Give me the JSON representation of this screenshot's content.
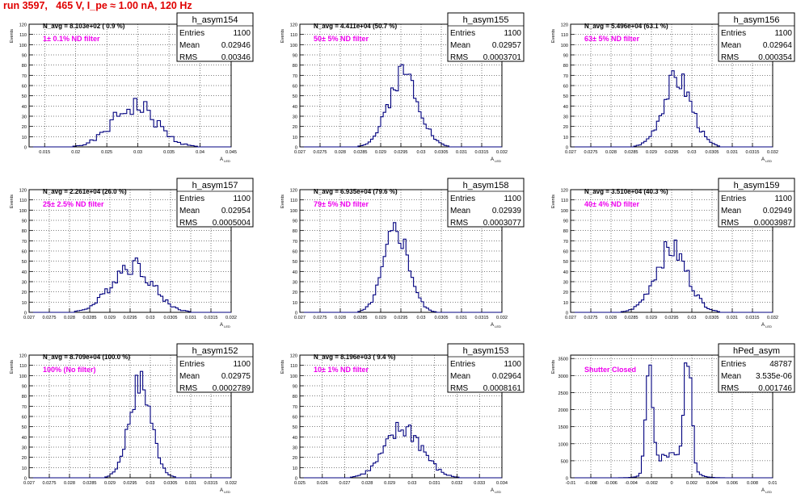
{
  "header": {
    "run_title": "run 3597,   465 V, I_pe ≈ 1.00 nA, 120 Hz"
  },
  "colors": {
    "hist": "#00007f",
    "title": "#e00000",
    "annot": "#ee00ee",
    "grid": "#000000"
  },
  "chart_data": [
    {
      "type": "histogram",
      "name": "h_asym154",
      "stats": {
        "entries": "1100",
        "mean": "0.02946",
        "rms": "0.00346"
      },
      "navg": "N_avg = 8.103e+02 ( 0.9 %)",
      "filter": "1± 0.1% ND filter",
      "ylabel": "Events",
      "xlabel": "A_LED",
      "xlim": [
        0.0125,
        0.045
      ],
      "ylim": [
        0,
        120
      ],
      "xticks": [
        "0.015",
        "0.02",
        "0.025",
        "0.03",
        "0.035",
        "0.04",
        "0.045"
      ],
      "xtick_vals": [
        0.015,
        0.02,
        0.025,
        0.03,
        0.035,
        0.04,
        0.045
      ],
      "yticks": [
        0,
        10,
        20,
        30,
        40,
        50,
        60,
        70,
        80,
        90,
        100,
        110,
        120
      ],
      "hist": {
        "mean": 0.02946,
        "rms": 0.00346,
        "peak": 40,
        "bins": 60,
        "jag": 0.28,
        "seed": 1
      }
    },
    {
      "type": "histogram",
      "name": "h_asym155",
      "stats": {
        "entries": "1100",
        "mean": "0.02957",
        "rms": "0.0003701"
      },
      "navg": "N_avg = 4.411e+04 (50.7 %)",
      "filter": "50± 5% ND filter",
      "ylabel": "Events",
      "xlabel": "A_LED",
      "xlim": [
        0.027,
        0.032
      ],
      "ylim": [
        0,
        120
      ],
      "xticks": [
        "0.027",
        "0.0275",
        "0.028",
        "0.0285",
        "0.029",
        "0.0295",
        "0.03",
        "0.0305",
        "0.031",
        "0.0315",
        "0.032"
      ],
      "xtick_vals": [
        0.027,
        0.0275,
        0.028,
        0.0285,
        0.029,
        0.0295,
        0.03,
        0.0305,
        0.031,
        0.0315,
        0.032
      ],
      "yticks": [
        0,
        10,
        20,
        30,
        40,
        50,
        60,
        70,
        80,
        90,
        100,
        110,
        120
      ],
      "hist": {
        "mean": 0.02957,
        "rms": 0.00037,
        "peak": 73,
        "bins": 80,
        "jag": 0.18,
        "seed": 2
      }
    },
    {
      "type": "histogram",
      "name": "h_asym156",
      "stats": {
        "entries": "1100",
        "mean": "0.02964",
        "rms": "0.000354"
      },
      "navg": "N_avg = 5.496e+04 (63.1 %)",
      "filter": "63± 5% ND filter",
      "ylabel": "Events",
      "xlabel": "A_LED",
      "xlim": [
        0.027,
        0.032
      ],
      "ylim": [
        0,
        120
      ],
      "xticks": [
        "0.027",
        "0.0275",
        "0.028",
        "0.0285",
        "0.029",
        "0.0295",
        "0.03",
        "0.0305",
        "0.031",
        "0.0315",
        "0.032"
      ],
      "xtick_vals": [
        0.027,
        0.0275,
        0.028,
        0.0285,
        0.029,
        0.0295,
        0.03,
        0.0305,
        0.031,
        0.0315,
        0.032
      ],
      "yticks": [
        0,
        10,
        20,
        30,
        40,
        50,
        60,
        70,
        80,
        90,
        100,
        110,
        120
      ],
      "hist": {
        "mean": 0.02964,
        "rms": 0.000354,
        "peak": 67,
        "bins": 80,
        "jag": 0.2,
        "seed": 3
      }
    },
    {
      "type": "histogram",
      "name": "h_asym157",
      "stats": {
        "entries": "1100",
        "mean": "0.02954",
        "rms": "0.0005004"
      },
      "navg": "N_avg = 2.261e+04 (26.0 %)",
      "filter": "25± 2.5% ND filter",
      "ylabel": "Events",
      "xlabel": "A_LED",
      "xlim": [
        0.027,
        0.032
      ],
      "ylim": [
        0,
        120
      ],
      "xticks": [
        "0.027",
        "0.0275",
        "0.028",
        "0.0285",
        "0.029",
        "0.0295",
        "0.03",
        "0.0305",
        "0.031",
        "0.0315",
        "0.032"
      ],
      "xtick_vals": [
        0.027,
        0.0275,
        0.028,
        0.0285,
        0.029,
        0.0295,
        0.03,
        0.0305,
        0.031,
        0.0315,
        0.032
      ],
      "yticks": [
        0,
        10,
        20,
        30,
        40,
        50,
        60,
        70,
        80,
        90,
        100,
        110,
        120
      ],
      "hist": {
        "mean": 0.02954,
        "rms": 0.0005,
        "peak": 47,
        "bins": 80,
        "jag": 0.22,
        "seed": 4
      }
    },
    {
      "type": "histogram",
      "name": "h_asym158",
      "stats": {
        "entries": "1100",
        "mean": "0.02939",
        "rms": "0.0003077"
      },
      "navg": "N_avg = 6.935e+04 (79.6 %)",
      "filter": "79± 5% ND filter",
      "ylabel": "Events",
      "xlabel": "A_LED",
      "xlim": [
        0.027,
        0.032
      ],
      "ylim": [
        0,
        120
      ],
      "xticks": [
        "0.027",
        "0.0275",
        "0.028",
        "0.0285",
        "0.029",
        "0.0295",
        "0.03",
        "0.0305",
        "0.031",
        "0.0315",
        "0.032"
      ],
      "xtick_vals": [
        0.027,
        0.0275,
        0.028,
        0.0285,
        0.029,
        0.0295,
        0.03,
        0.0305,
        0.031,
        0.0315,
        0.032
      ],
      "yticks": [
        0,
        10,
        20,
        30,
        40,
        50,
        60,
        70,
        80,
        90,
        100,
        110,
        120
      ],
      "hist": {
        "mean": 0.02939,
        "rms": 0.000308,
        "peak": 80,
        "bins": 80,
        "jag": 0.18,
        "seed": 5
      }
    },
    {
      "type": "histogram",
      "name": "h_asym159",
      "stats": {
        "entries": "1100",
        "mean": "0.02949",
        "rms": "0.0003987"
      },
      "navg": "N_avg = 3.510e+04 (40.3 %)",
      "filter": "40± 4% ND filter",
      "ylabel": "Events",
      "xlabel": "A_LED",
      "xlim": [
        0.027,
        0.032
      ],
      "ylim": [
        0,
        120
      ],
      "xticks": [
        "0.027",
        "0.0275",
        "0.028",
        "0.0285",
        "0.029",
        "0.0295",
        "0.03",
        "0.0305",
        "0.031",
        "0.0315",
        "0.032"
      ],
      "xtick_vals": [
        0.027,
        0.0275,
        0.028,
        0.0285,
        0.029,
        0.0295,
        0.03,
        0.0305,
        0.031,
        0.0315,
        0.032
      ],
      "yticks": [
        0,
        10,
        20,
        30,
        40,
        50,
        60,
        70,
        80,
        90,
        100,
        110,
        120
      ],
      "hist": {
        "mean": 0.02949,
        "rms": 0.0004,
        "peak": 62,
        "bins": 80,
        "jag": 0.2,
        "seed": 6
      }
    },
    {
      "type": "histogram",
      "name": "h_asym152",
      "stats": {
        "entries": "1100",
        "mean": "0.02975",
        "rms": "0.0002789"
      },
      "navg": "N_avg = 8.709e+04 (100.0 %)",
      "filter": "100% (No filter)",
      "ylabel": "Events",
      "xlabel": "A_LED",
      "xlim": [
        0.027,
        0.032
      ],
      "ylim": [
        0,
        120
      ],
      "xticks": [
        "0.027",
        "0.0275",
        "0.028",
        "0.0285",
        "0.029",
        "0.0295",
        "0.03",
        "0.0305",
        "0.031",
        "0.0315",
        "0.032"
      ],
      "xtick_vals": [
        0.027,
        0.0275,
        0.028,
        0.0285,
        0.029,
        0.0295,
        0.03,
        0.0305,
        0.031,
        0.0315,
        0.032
      ],
      "yticks": [
        0,
        10,
        20,
        30,
        40,
        50,
        60,
        70,
        80,
        90,
        100,
        110,
        120
      ],
      "hist": {
        "mean": 0.02975,
        "rms": 0.000279,
        "peak": 92,
        "bins": 80,
        "jag": 0.18,
        "seed": 7
      }
    },
    {
      "type": "histogram",
      "name": "h_asym153",
      "stats": {
        "entries": "1100",
        "mean": "0.02964",
        "rms": "0.0008161"
      },
      "navg": "N_avg = 8.196e+03 ( 9.4 %)",
      "filter": "10± 1% ND filter",
      "ylabel": "Events",
      "xlabel": "A_LED",
      "xlim": [
        0.025,
        0.034
      ],
      "ylim": [
        0,
        120
      ],
      "xticks": [
        "0.025",
        "0.026",
        "0.027",
        "0.028",
        "0.029",
        "0.03",
        "0.031",
        "0.032",
        "0.033",
        "0.034"
      ],
      "xtick_vals": [
        0.025,
        0.026,
        0.027,
        0.028,
        0.029,
        0.03,
        0.031,
        0.032,
        0.033,
        0.034
      ],
      "yticks": [
        0,
        10,
        20,
        30,
        40,
        50,
        60,
        70,
        80,
        90,
        100,
        110,
        120
      ],
      "hist": {
        "mean": 0.02964,
        "rms": 0.000816,
        "peak": 48,
        "bins": 80,
        "jag": 0.25,
        "seed": 8
      }
    },
    {
      "type": "histogram",
      "name": "hPed_asym",
      "stats": {
        "entries": "48787",
        "mean": "3.535e-06",
        "rms": "0.001746"
      },
      "navg": "",
      "filter": "Shutter Closed",
      "ylabel": "Events",
      "xlabel": "A_LED",
      "xlim": [
        -0.01,
        0.01
      ],
      "ylim": [
        0,
        3600
      ],
      "xticks": [
        "-0.01",
        "-0.008",
        "-0.006",
        "-0.004",
        "-0.002",
        "0",
        "0.002",
        "0.004",
        "0.006",
        "0.008",
        "0.01"
      ],
      "xtick_vals": [
        -0.01,
        -0.008,
        -0.006,
        -0.004,
        -0.002,
        0,
        0.002,
        0.004,
        0.006,
        0.008,
        0.01
      ],
      "yticks": [
        0,
        500,
        1000,
        1500,
        2000,
        2500,
        3000,
        3500
      ],
      "hist": {
        "bimodal": true,
        "mean": 0.0,
        "rms": 0.00175,
        "peak": 3450,
        "bins": 80,
        "jag": 0.15,
        "seed": 9
      }
    }
  ]
}
